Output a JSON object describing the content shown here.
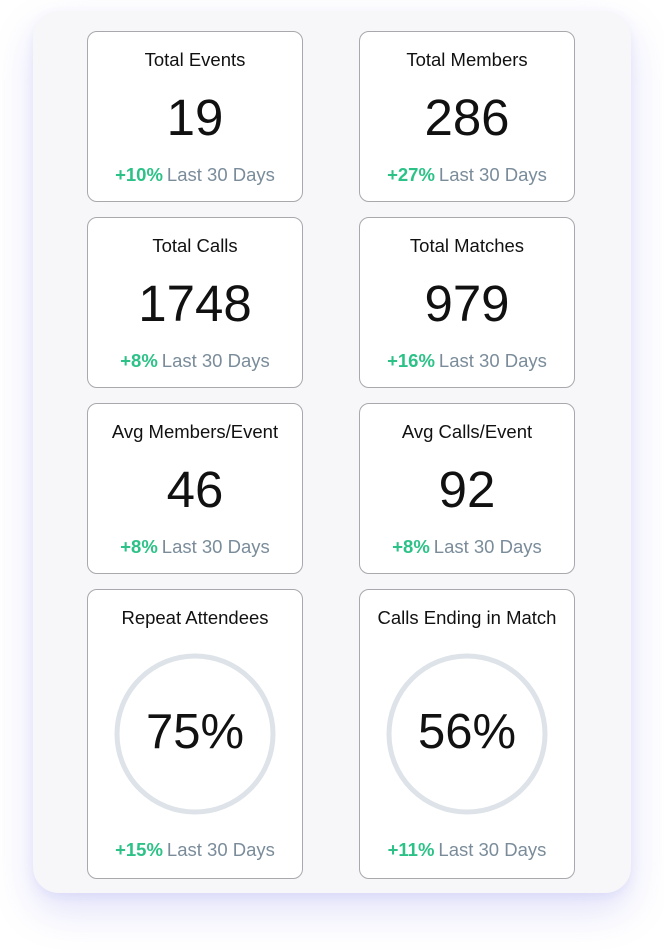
{
  "stats": [
    {
      "title": "Total Events",
      "value": "19",
      "delta": "+10%",
      "period": "Last 30 Days"
    },
    {
      "title": "Total Members",
      "value": "286",
      "delta": "+27%",
      "period": "Last 30 Days"
    },
    {
      "title": "Total Calls",
      "value": "1748",
      "delta": "+8%",
      "period": "Last 30 Days"
    },
    {
      "title": "Total Matches",
      "value": "979",
      "delta": "+16%",
      "period": "Last 30 Days"
    },
    {
      "title": "Avg Members/Event",
      "value": "46",
      "delta": "+8%",
      "period": "Last 30 Days"
    },
    {
      "title": "Avg Calls/Event",
      "value": "92",
      "delta": "+8%",
      "period": "Last 30 Days"
    }
  ],
  "rings": [
    {
      "title": "Repeat Attendees",
      "value": "75%",
      "fraction": 0.75,
      "delta": "+15%",
      "period": "Last 30 Days"
    },
    {
      "title": "Calls Ending in Match",
      "value": "56%",
      "fraction": 0.56,
      "delta": "+11%",
      "period": "Last 30 Days"
    }
  ],
  "colors": {
    "ring_fill": "#2f80ed",
    "ring_track": "#dde3e8",
    "delta": "#2cc287",
    "period": "#7a8c9a"
  }
}
